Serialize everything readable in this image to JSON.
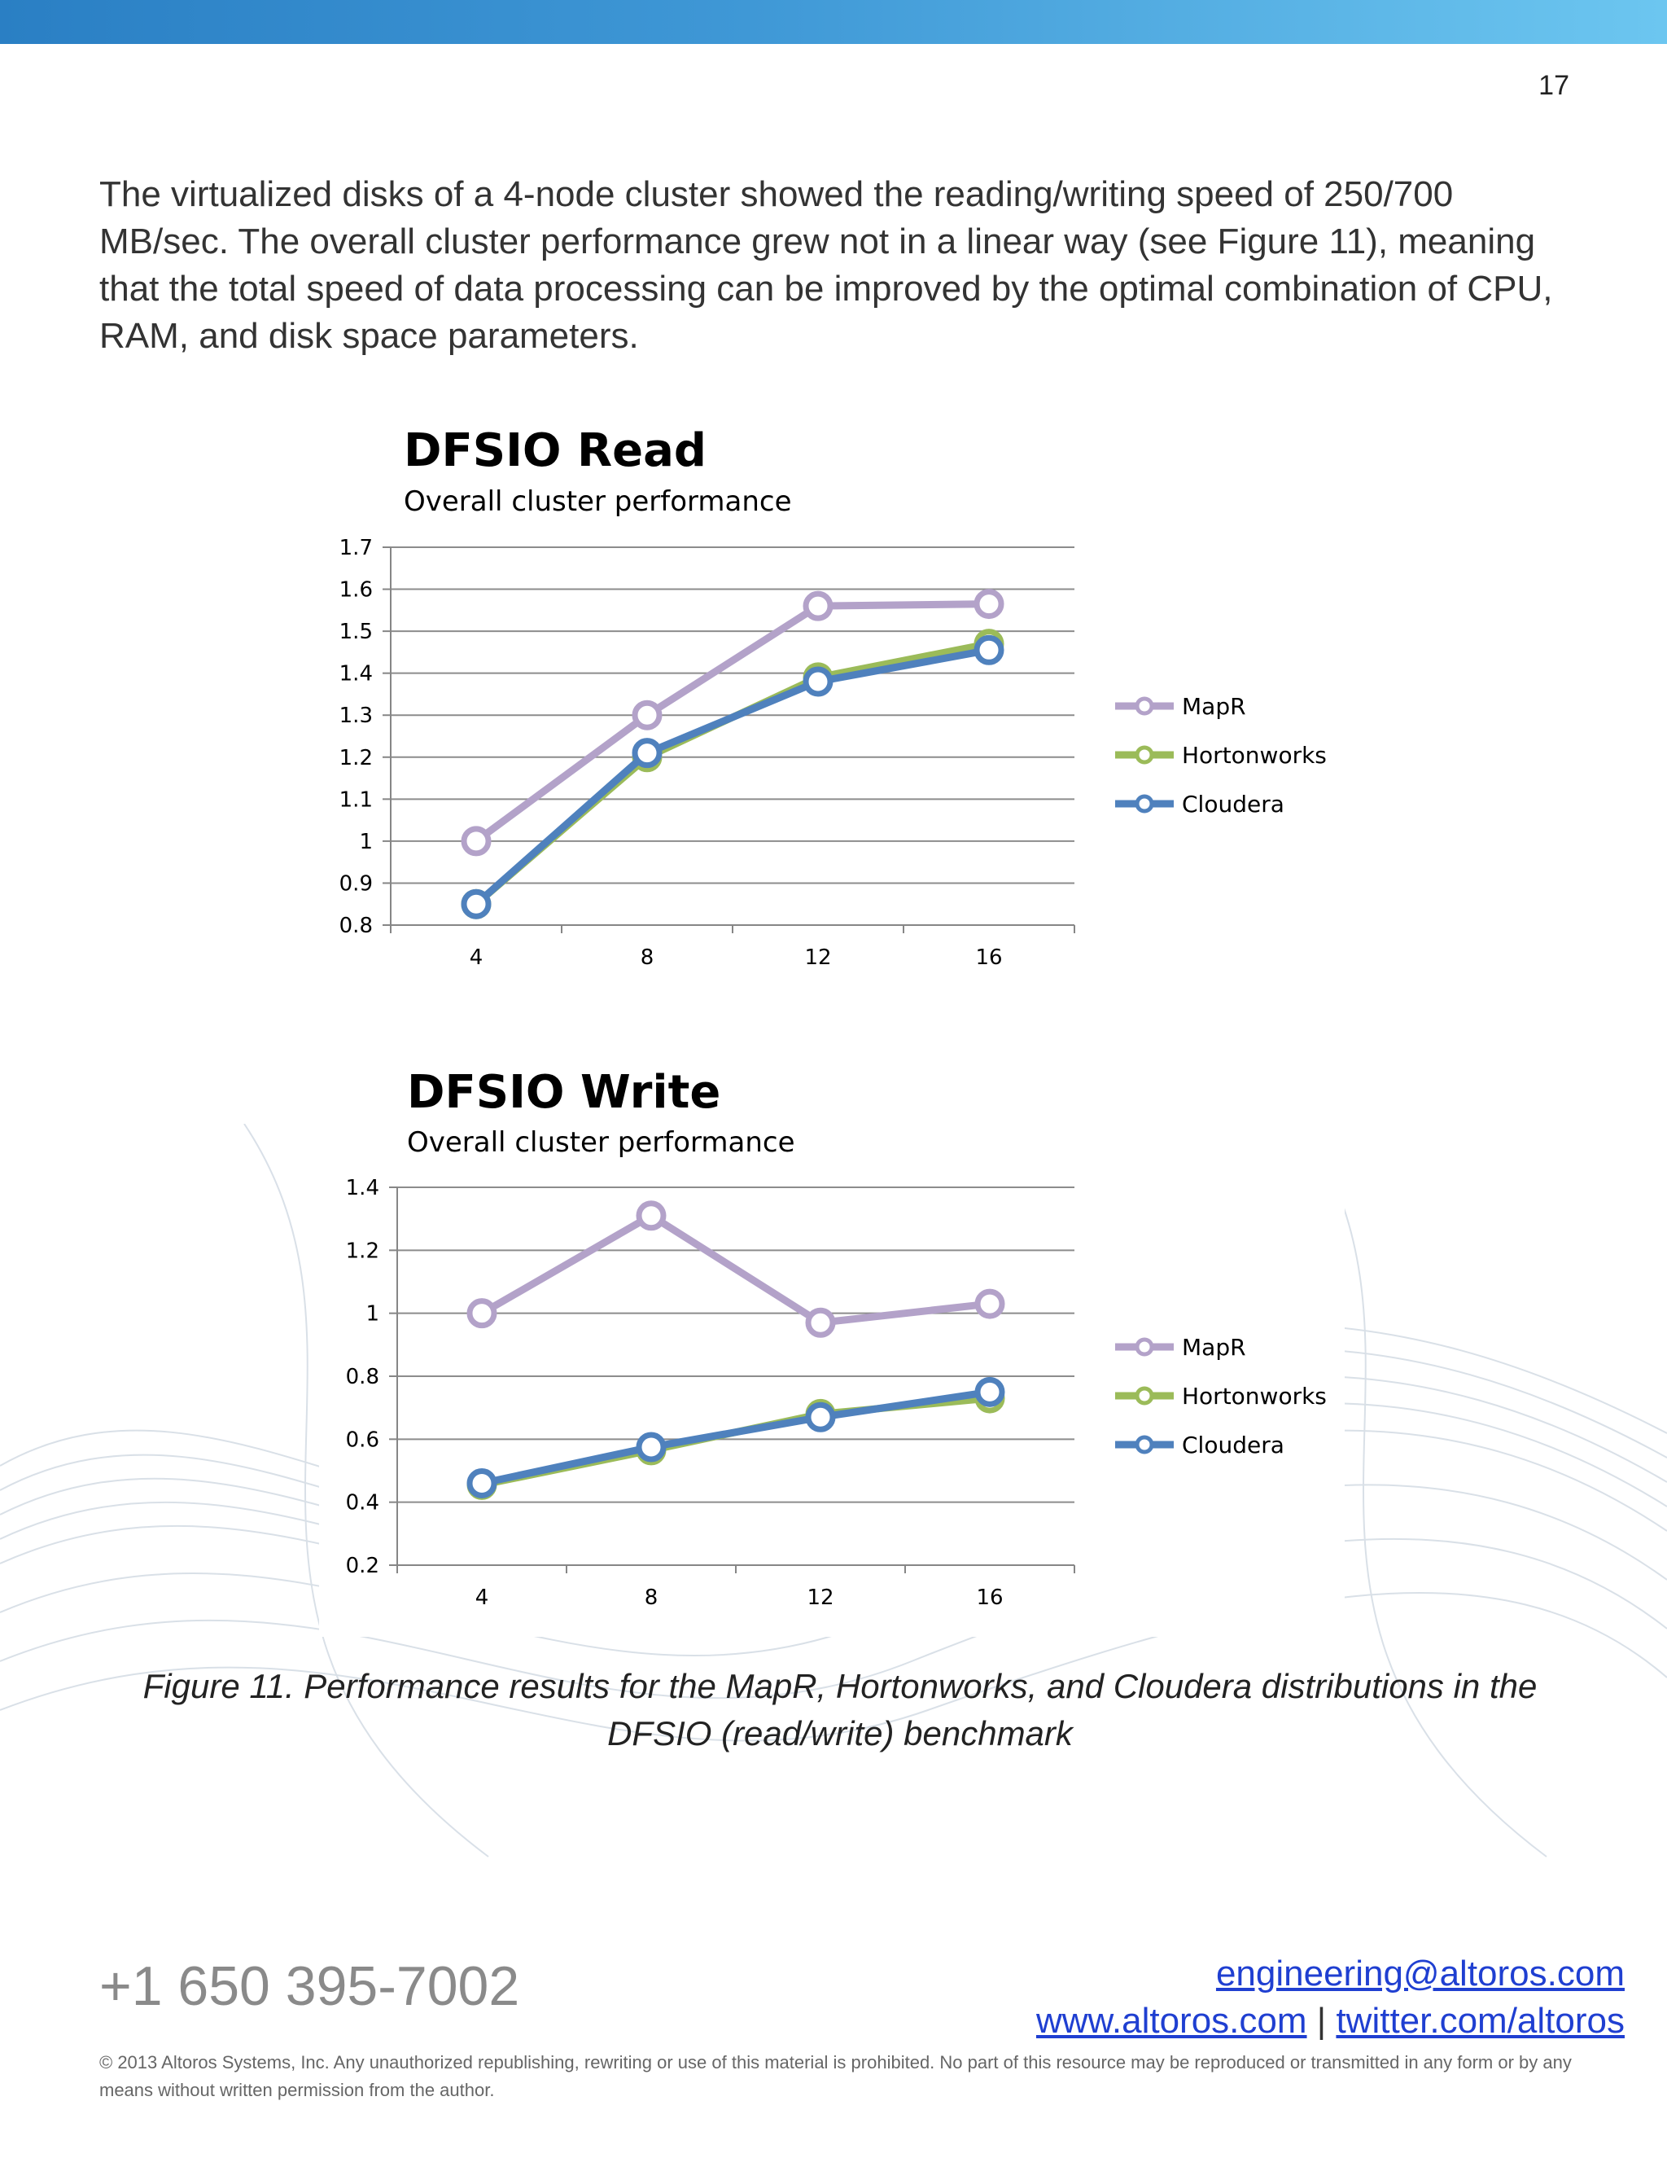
{
  "page": {
    "number": "17",
    "body_text": "The virtualized disks of a 4-node cluster showed the reading/writing speed of 250/700 MB/sec. The overall cluster performance grew not in a linear way (see Figure 11), meaning that the total speed of data processing can be improved by the optimal combination of CPU, RAM, and disk space parameters.",
    "caption": "Figure 11. Performance results for the MapR, Hortonworks, and Cloudera distributions in the DFSIO (read/write) benchmark"
  },
  "footer": {
    "phone": "+1 650 395-7002",
    "email": "engineering@altoros.com",
    "website": "www.altoros.com",
    "separator": "|",
    "twitter": "twitter.com/altoros",
    "copyright": "© 2013 Altoros Systems, Inc. Any unauthorized republishing, rewriting or use of this material is prohibited. No part of this resource may be reproduced or transmitted in any form or by any means without written permission from the author."
  },
  "colors": {
    "MapR": "#b3a2c9",
    "Hortonworks": "#9bbb59",
    "Cloudera": "#4f81bd",
    "top_bar_start": "#2a7fc4",
    "top_bar_end": "#6cc6f0"
  },
  "chart_data": [
    {
      "type": "line",
      "title": "DFSIO Read",
      "subtitle": "Overall cluster performance",
      "categories": [
        "4",
        "8",
        "12",
        "16"
      ],
      "yticks": [
        "0.8",
        "0.9",
        "1",
        "1.1",
        "1.2",
        "1.3",
        "1.4",
        "1.5",
        "1.6",
        "1.7"
      ],
      "ylim": [
        0.8,
        1.7
      ],
      "grid": true,
      "legend": "right",
      "series": [
        {
          "name": "MapR",
          "values": [
            1.0,
            1.3,
            1.56,
            1.565
          ]
        },
        {
          "name": "Hortonworks",
          "values": [
            0.85,
            1.2,
            1.39,
            1.47
          ]
        },
        {
          "name": "Cloudera",
          "values": [
            0.85,
            1.21,
            1.38,
            1.455
          ]
        }
      ]
    },
    {
      "type": "line",
      "title": "DFSIO Write",
      "subtitle": "Overall cluster performance",
      "categories": [
        "4",
        "8",
        "12",
        "16"
      ],
      "yticks": [
        "0.2",
        "0.4",
        "0.6",
        "0.8",
        "1",
        "1.2",
        "1.4"
      ],
      "ylim": [
        0.2,
        1.4
      ],
      "grid": true,
      "legend": "right",
      "series": [
        {
          "name": "MapR",
          "values": [
            1.0,
            1.31,
            0.97,
            1.03
          ]
        },
        {
          "name": "Hortonworks",
          "values": [
            0.455,
            0.565,
            0.68,
            0.73
          ]
        },
        {
          "name": "Cloudera",
          "values": [
            0.46,
            0.575,
            0.67,
            0.75
          ]
        }
      ]
    }
  ]
}
